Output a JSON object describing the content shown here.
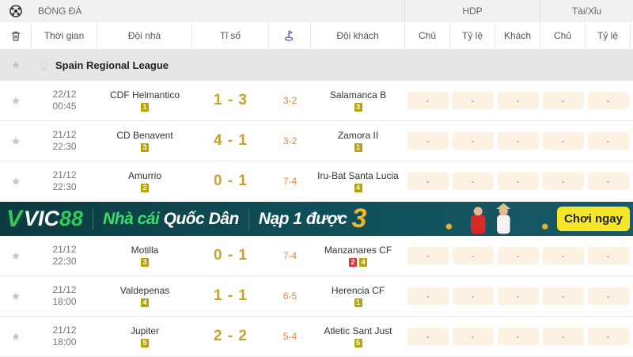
{
  "top": {
    "sport": "BÓNG ĐÁ",
    "hdp": "HDP",
    "taixiu": "Tài/Xỉu"
  },
  "columns": {
    "time": "Thời gian",
    "home": "Đội nhà",
    "score": "Tỉ số",
    "away": "Đội khách",
    "hdp": [
      "Chủ",
      "Tỷ lệ",
      "Khách"
    ],
    "tx": [
      "Chủ",
      "Tỷ lệ"
    ]
  },
  "league": "Spain Regional League",
  "matches_a": [
    {
      "date": "22/12",
      "time": "00:45",
      "home": "CDF Helmantico",
      "home_badges": [
        {
          "v": "1",
          "c": "y"
        }
      ],
      "score": "1-3",
      "corner": "3-2",
      "away": "Salamanca B",
      "away_badges": [
        {
          "v": "3",
          "c": "y"
        }
      ]
    },
    {
      "date": "21/12",
      "time": "22:30",
      "home": "CD Benavent",
      "home_badges": [
        {
          "v": "3",
          "c": "y"
        }
      ],
      "score": "4-1",
      "corner": "3-2",
      "away": "Zamora II",
      "away_badges": [
        {
          "v": "1",
          "c": "y"
        }
      ]
    },
    {
      "date": "21/12",
      "time": "22:30",
      "home": "Amurrio",
      "home_badges": [
        {
          "v": "2",
          "c": "y"
        }
      ],
      "score": "0-1",
      "corner": "7-4",
      "away": "Iru-Bat Santa Lucia",
      "away_badges": [
        {
          "v": "4",
          "c": "y"
        }
      ]
    }
  ],
  "banner": {
    "brand": "VIC",
    "brand_num": "88",
    "slogan_a": "Nhà cái",
    "slogan_b": "Quốc Dân",
    "promo": "Nạp 1 được",
    "promo_num": "3",
    "cta": "Chơi ngay"
  },
  "matches_b": [
    {
      "date": "21/12",
      "time": "22:30",
      "home": "Motilla",
      "home_badges": [
        {
          "v": "3",
          "c": "y"
        }
      ],
      "score": "0-1",
      "corner": "7-4",
      "away": "Manzanares CF",
      "away_badges": [
        {
          "v": "2",
          "c": "r"
        },
        {
          "v": "4",
          "c": "y"
        }
      ]
    },
    {
      "date": "21/12",
      "time": "18:00",
      "home": "Valdepenas",
      "home_badges": [
        {
          "v": "4",
          "c": "y"
        }
      ],
      "score": "1-1",
      "corner": "6-5",
      "away": "Herencia CF",
      "away_badges": [
        {
          "v": "1",
          "c": "y"
        }
      ]
    },
    {
      "date": "21/12",
      "time": "18:00",
      "home": "Jupiter",
      "home_badges": [
        {
          "v": "5",
          "c": "y"
        }
      ],
      "score": "2-2",
      "corner": "5-4",
      "away": "Atletic Sant Just",
      "away_badges": [
        {
          "v": "5",
          "c": "y"
        }
      ]
    }
  ],
  "odds_placeholder": "-",
  "colors": {
    "score": "#c9a22b",
    "corner": "#e0873a",
    "badge_yellow": "#b5a40c",
    "badge_red": "#d23a3f",
    "odds_bg": "#fdf1e2"
  }
}
